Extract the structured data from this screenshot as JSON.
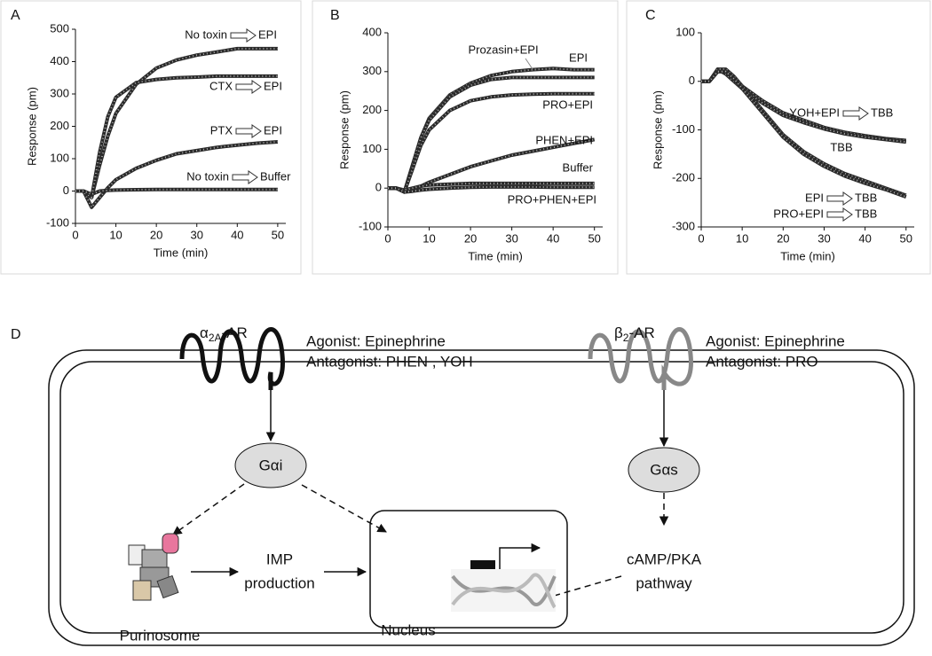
{
  "chart_data": [
    {
      "type": "line",
      "panel_label": "A",
      "x_label": "Time (min)",
      "y_label": "Response (pm)",
      "x": [
        0,
        2,
        4,
        6,
        8,
        10,
        15,
        20,
        25,
        30,
        35,
        40,
        45,
        50
      ],
      "xlim": [
        0,
        52
      ],
      "xticks": [
        0,
        10,
        20,
        30,
        40,
        50
      ],
      "ylim": [
        -100,
        500
      ],
      "yticks": [
        -100,
        0,
        100,
        200,
        300,
        400,
        500
      ],
      "series": [
        {
          "name": "No toxin",
          "target": "EPI",
          "color": "#2a2a2a",
          "values": [
            0,
            0,
            -20,
            80,
            170,
            240,
            330,
            380,
            405,
            420,
            430,
            440,
            440,
            440
          ]
        },
        {
          "name": "CTX",
          "target": "EPI",
          "color": "#2a2a2a",
          "values": [
            0,
            0,
            -20,
            120,
            230,
            290,
            335,
            345,
            350,
            352,
            355,
            355,
            355,
            355
          ]
        },
        {
          "name": "PTX",
          "target": "EPI",
          "color": "#2a2a2a",
          "values": [
            0,
            0,
            -50,
            -20,
            10,
            35,
            70,
            95,
            115,
            125,
            135,
            142,
            148,
            152
          ]
        },
        {
          "name": "No toxin",
          "target": "Buffer",
          "color": "#2a2a2a",
          "values": [
            0,
            0,
            -10,
            0,
            2,
            3,
            4,
            5,
            5,
            5,
            5,
            5,
            5,
            5
          ]
        }
      ]
    },
    {
      "type": "line",
      "panel_label": "B",
      "x_label": "Time (min)",
      "y_label": "Response (pm)",
      "x": [
        0,
        2,
        4,
        6,
        8,
        10,
        15,
        20,
        25,
        30,
        35,
        40,
        45,
        50
      ],
      "xlim": [
        0,
        52
      ],
      "xticks": [
        0,
        10,
        20,
        30,
        40,
        50
      ],
      "ylim": [
        -100,
        400
      ],
      "yticks": [
        -100,
        0,
        100,
        200,
        300,
        400
      ],
      "series": [
        {
          "name": "Prozasin+EPI",
          "color": "#2a2a2a",
          "values": [
            0,
            0,
            -10,
            60,
            130,
            180,
            240,
            270,
            290,
            300,
            305,
            308,
            305,
            305
          ]
        },
        {
          "name": "EPI",
          "color": "#2a2a2a",
          "values": [
            0,
            0,
            -10,
            60,
            130,
            175,
            235,
            265,
            280,
            285,
            285,
            285,
            285,
            285
          ]
        },
        {
          "name": "PRO+EPI",
          "color": "#2a2a2a",
          "values": [
            0,
            0,
            -10,
            50,
            110,
            150,
            200,
            225,
            235,
            240,
            242,
            243,
            243,
            243
          ]
        },
        {
          "name": "PHEN+EPI",
          "color": "#2a2a2a",
          "values": [
            0,
            0,
            -10,
            -5,
            5,
            15,
            35,
            55,
            70,
            85,
            95,
            105,
            115,
            125
          ]
        },
        {
          "name": "Buffer",
          "color": "#2a2a2a",
          "values": [
            0,
            0,
            -5,
            0,
            5,
            8,
            10,
            12,
            12,
            12,
            12,
            12,
            12,
            12
          ]
        },
        {
          "name": "PRO+PHEN+EPI",
          "color": "#2a2a2a",
          "values": [
            0,
            0,
            -10,
            -8,
            -5,
            -3,
            0,
            2,
            3,
            3,
            3,
            2,
            2,
            2
          ]
        }
      ]
    },
    {
      "type": "line",
      "panel_label": "C",
      "x_label": "Time (min)",
      "y_label": "Response (pm)",
      "x": [
        0,
        2,
        4,
        6,
        8,
        10,
        15,
        20,
        25,
        30,
        35,
        40,
        45,
        50
      ],
      "xlim": [
        0,
        52
      ],
      "xticks": [
        0,
        10,
        20,
        30,
        40,
        50
      ],
      "ylim": [
        -300,
        100
      ],
      "yticks": [
        -300,
        -200,
        -100,
        0,
        100
      ],
      "series": [
        {
          "name": "YOH+EPI",
          "target": "TBB",
          "color": "#2a2a2a",
          "values": [
            0,
            0,
            20,
            20,
            5,
            -10,
            -40,
            -65,
            -80,
            -95,
            -105,
            -112,
            -118,
            -122
          ]
        },
        {
          "name": "TBB",
          "color": "#2a2a2a",
          "values": [
            0,
            0,
            25,
            15,
            0,
            -15,
            -45,
            -70,
            -85,
            -98,
            -108,
            -115,
            -120,
            -125
          ]
        },
        {
          "name": "EPI",
          "target": "TBB",
          "color": "#2a2a2a",
          "values": [
            0,
            0,
            25,
            25,
            10,
            -10,
            -60,
            -110,
            -145,
            -170,
            -190,
            -205,
            -220,
            -235
          ]
        },
        {
          "name": "PRO+EPI",
          "target": "TBB",
          "color": "#2a2a2a",
          "values": [
            0,
            0,
            20,
            20,
            5,
            -15,
            -65,
            -115,
            -150,
            -175,
            -195,
            -210,
            -223,
            -238
          ]
        }
      ]
    }
  ],
  "diagram": {
    "panel_label": "D",
    "alpha_receptor": {
      "symbol": "α",
      "sub": "2A",
      "suffix": "-AR"
    },
    "alpha_agonist": "Agonist: Epinephrine",
    "alpha_antagonist": "Antagonist: PHEN , YOH",
    "beta_receptor": {
      "symbol": "β",
      "sub": "2",
      "suffix": "-AR"
    },
    "beta_agonist": "Agonist: Epinephrine",
    "beta_antagonist": "Antagonist: PRO",
    "g_alpha_i": "Gαi",
    "g_alpha_s": "Gαs",
    "imp_line1": "IMP",
    "imp_line2": "production",
    "purinosome": "Purinosome",
    "nucleus": "Nucleus",
    "camp_line1": "cAMP/PKA",
    "camp_line2": "pathway"
  }
}
